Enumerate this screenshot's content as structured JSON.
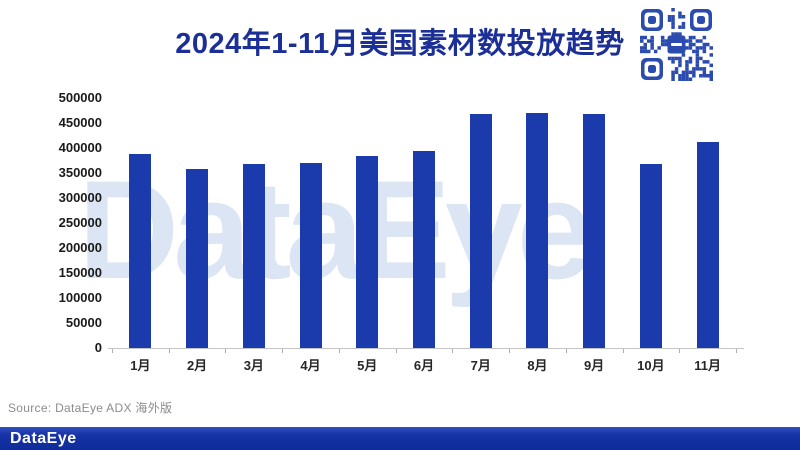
{
  "chart_data": {
    "type": "bar",
    "title": "2024年1-11月美国素材数投放趋势",
    "categories": [
      "1月",
      "2月",
      "3月",
      "4月",
      "5月",
      "6月",
      "7月",
      "8月",
      "9月",
      "10月",
      "11月"
    ],
    "values": [
      388000,
      359000,
      368000,
      370000,
      384000,
      394000,
      469000,
      470000,
      469000,
      368000,
      412000
    ],
    "xlabel": "",
    "ylabel": "",
    "ylim": [
      0,
      500000
    ],
    "yticks": [
      0,
      50000,
      100000,
      150000,
      200000,
      250000,
      300000,
      350000,
      400000,
      450000,
      500000
    ],
    "grid": false,
    "legend": null,
    "bar_color": "#1b3aab",
    "watermark": "DataEye"
  },
  "footer": {
    "source": "Source: DataEye ADX 海外版",
    "logo_text": "DataEye"
  },
  "colors": {
    "title_text": "#1b2f96",
    "bar": "#1b3aab",
    "qr_blue": "#2b4bae",
    "watermark": "#dbe5f4",
    "axis_text": "#1a1a1a",
    "source_text": "#8c8c8c",
    "footer_bar": "#1632a4"
  }
}
